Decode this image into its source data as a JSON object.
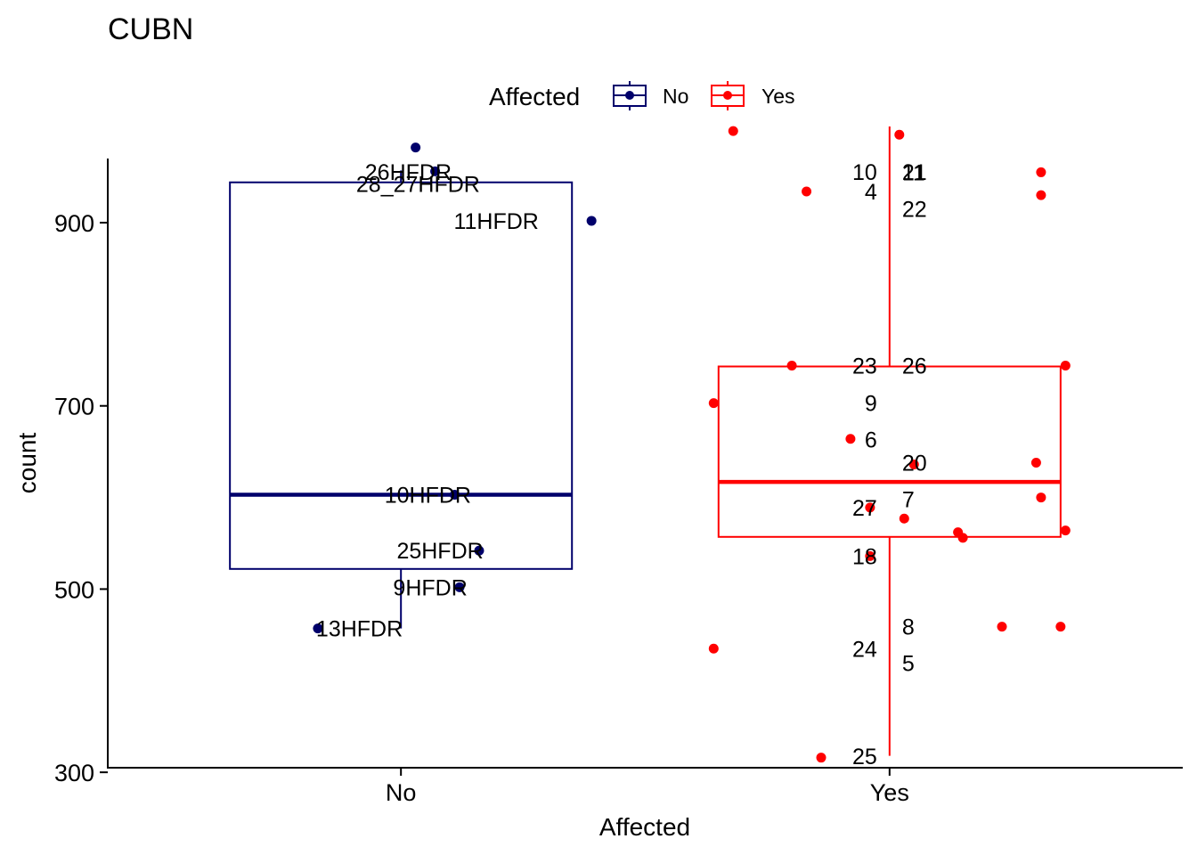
{
  "chart_data": {
    "type": "boxplot",
    "title": "CUBN",
    "xlabel": "Affected",
    "ylabel": "count",
    "ylim": [
      305,
      970
    ],
    "yticks": [
      300,
      500,
      700,
      900
    ],
    "categories": [
      "No",
      "Yes"
    ],
    "legend": {
      "title": "Affected",
      "position": "top",
      "entries": [
        {
          "label": "No",
          "color": "#00006b"
        },
        {
          "label": "Yes",
          "color": "#ff0000"
        }
      ]
    },
    "groups": [
      {
        "category": "No",
        "color": "#00006b",
        "box": {
          "whisker_low": 457,
          "q1": 522,
          "median": 603,
          "q3": 944,
          "whisker_high": 957
        },
        "points": [
          {
            "label": "28_27HFDR",
            "x_offset": 0.07,
            "y": 956
          },
          {
            "label": "26HFDR",
            "x_offset": 0.03,
            "y": 982
          },
          {
            "label": "11HFDR",
            "x_offset": 0.39,
            "y": 902
          },
          {
            "label": "10HFDR",
            "x_offset": 0.11,
            "y": 603
          },
          {
            "label": "25HFDR",
            "x_offset": 0.16,
            "y": 542
          },
          {
            "label": "13HFDR",
            "x_offset": -0.17,
            "y": 457
          },
          {
            "label": "9HFDR",
            "x_offset": 0.12,
            "y": 502
          }
        ]
      },
      {
        "category": "Yes",
        "color": "#ff0000",
        "box": {
          "whisker_low": 318,
          "q1": 557,
          "median": 617,
          "q3": 743,
          "whisker_high": 1005
        },
        "points": [
          {
            "label": "21",
            "x_offset": 0.02,
            "y": 996
          },
          {
            "label": "10",
            "x_offset": -0.32,
            "y": 1000
          },
          {
            "label": "11",
            "x_offset": 0.31,
            "y": 955
          },
          {
            "label": "4",
            "x_offset": -0.17,
            "y": 934
          },
          {
            "label": "22",
            "x_offset": 0.31,
            "y": 930
          },
          {
            "label": "23",
            "x_offset": -0.2,
            "y": 744
          },
          {
            "label": "26",
            "x_offset": 0.36,
            "y": 744
          },
          {
            "label": "9",
            "x_offset": -0.36,
            "y": 703
          },
          {
            "label": "6",
            "x_offset": -0.08,
            "y": 664
          },
          {
            "label": "7",
            "x_offset": 0.05,
            "y": 636
          },
          {
            "label": "20",
            "x_offset": 0.3,
            "y": 638
          },
          {
            "label": "27",
            "x_offset": -0.04,
            "y": 589
          },
          {
            "label": "",
            "x_offset": 0.03,
            "y": 577
          },
          {
            "label": "",
            "x_offset": 0.31,
            "y": 600
          },
          {
            "label": "",
            "x_offset": 0.14,
            "y": 562
          },
          {
            "label": "",
            "x_offset": 0.15,
            "y": 556
          },
          {
            "label": "",
            "x_offset": 0.36,
            "y": 564
          },
          {
            "label": "18",
            "x_offset": -0.04,
            "y": 536
          },
          {
            "label": "8",
            "x_offset": 0.23,
            "y": 459
          },
          {
            "label": "5",
            "x_offset": 0.35,
            "y": 459
          },
          {
            "label": "24",
            "x_offset": -0.36,
            "y": 435
          },
          {
            "label": "25",
            "x_offset": -0.14,
            "y": 316
          }
        ]
      }
    ]
  }
}
